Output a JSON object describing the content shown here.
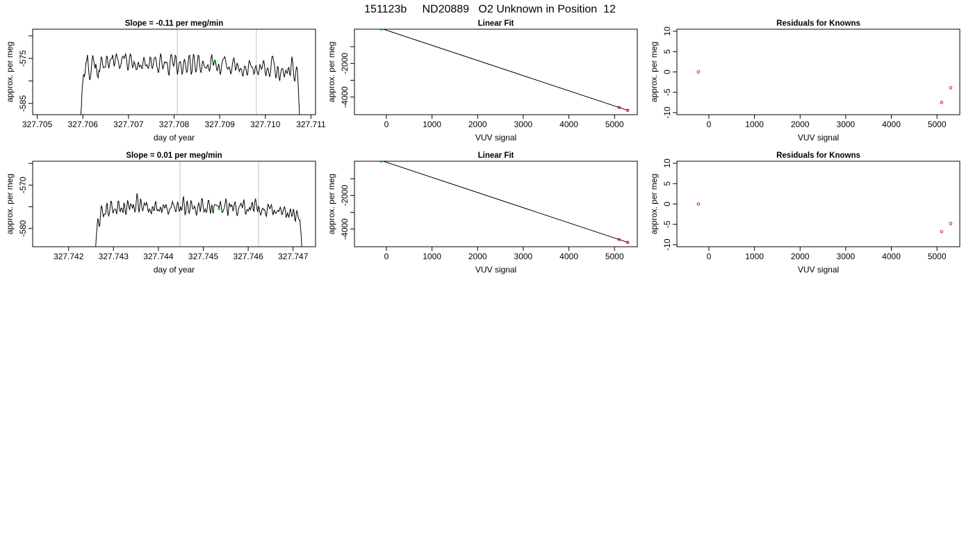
{
  "title": "151123b     ND20889   O2 Unknown in Position  12",
  "colors": {
    "trace": "#000000",
    "marker_green": "#00cc00",
    "marker_red": "#cc0000",
    "cursor_gray": "#cccccc"
  },
  "chart_data": [
    {
      "type": "line",
      "title": "Slope =  -0.11  per meg/min",
      "xlabel": "day of year",
      "ylabel": "approx. per meg",
      "xlim": [
        327.7049,
        327.7111
      ],
      "ylim": [
        -587.5,
        -568.5
      ],
      "xticks": [
        "327.705",
        "327.706",
        "327.707",
        "327.708",
        "327.709",
        "327.710",
        "327.711"
      ],
      "yticks": [
        -585,
        -580,
        -575,
        -570
      ],
      "ytick_labels": [
        "-585",
        "",
        "-575",
        ""
      ],
      "vlines": [
        327.70807,
        327.7098
      ],
      "x_start": 327.70595,
      "x_end": 327.71075,
      "values": [
        -588.0,
        -586.0,
        -582.0,
        -580.0,
        -578.5,
        -579.0,
        -578.2,
        -576.0,
        -575.5,
        -574.2,
        -576.3,
        -578.3,
        -579.8,
        -579.2,
        -577.6,
        -575.3,
        -574.3,
        -575.2,
        -576.4,
        -577.2,
        -576.2,
        -577.4,
        -578.9,
        -579.3,
        -577.7,
        -577.9,
        -576.4,
        -574.7,
        -574.9,
        -576.3,
        -577.1,
        -577.0,
        -577.0,
        -576.5,
        -574.5,
        -574.6,
        -576.3,
        -577.2,
        -576.2,
        -575.2,
        -575.1,
        -575.0,
        -574.2,
        -575.4,
        -576.8,
        -576.1,
        -574.5,
        -574.0,
        -574.8,
        -575.3,
        -576.1,
        -577.2,
        -577.0,
        -576.3,
        -575.2,
        -574.5,
        -574.5,
        -575.0,
        -574.6,
        -573.9,
        -574.9,
        -576.4,
        -577.7,
        -577.0,
        -575.1,
        -574.0,
        -574.3,
        -575.7,
        -577.0,
        -576.8,
        -575.7,
        -576.1,
        -576.8,
        -577.5,
        -577.4,
        -576.1,
        -575.9,
        -576.9,
        -576.6,
        -576.5,
        -577.2,
        -577.2,
        -575.6,
        -574.7,
        -575.4,
        -576.6,
        -576.6,
        -576.4,
        -577.1,
        -577.2,
        -576.3,
        -574.7,
        -574.8,
        -576.6,
        -577.3,
        -576.6,
        -575.4,
        -574.9,
        -574.7,
        -575.3,
        -576.7,
        -577.5,
        -578.2,
        -577.3,
        -575.1,
        -573.9,
        -574.9,
        -576.6,
        -577.4,
        -576.6,
        -575.8,
        -576.0,
        -575.8,
        -575.8,
        -576.5,
        -578.2,
        -578.8,
        -576.6,
        -574.4,
        -574.1,
        -574.9,
        -576.2,
        -576.8,
        -575.8,
        -574.3,
        -574.5,
        -577.1,
        -578.6,
        -577.5,
        -576.1,
        -575.8,
        -575.7,
        -577.1,
        -578.6,
        -577.8,
        -576.0,
        -575.2,
        -575.7,
        -577.0,
        -578.1,
        -577.8,
        -576.0,
        -574.4,
        -574.3,
        -576.6,
        -578.6,
        -578.0,
        -575.5,
        -574.0,
        -574.6,
        -576.9,
        -578.1,
        -577.6,
        -575.9,
        -574.3,
        -574.4,
        -576.2,
        -577.8,
        -578.1,
        -576.8,
        -575.6,
        -575.8,
        -576.7,
        -577.0,
        -577.1,
        -577.2,
        -576.6,
        -576.4,
        -577.3,
        -577.9,
        -577.0,
        -575.0,
        -574.1,
        -575.4,
        -576.6,
        -576.1,
        -575.3,
        -575.9,
        -577.0,
        -577.8,
        -577.1,
        -576.2,
        -577.2,
        -578.6,
        -578.0,
        -576.4,
        -575.5,
        -575.1,
        -575.0,
        -574.6,
        -575.4,
        -576.4,
        -577.2,
        -577.4,
        -577.0,
        -576.9,
        -577.8,
        -578.5,
        -577.7,
        -576.3,
        -575.3,
        -574.9,
        -576.0,
        -577.6,
        -577.3,
        -576.1,
        -576.3,
        -577.2,
        -577.9,
        -577.4,
        -577.2,
        -577.6,
        -578.7,
        -578.9,
        -577.7,
        -576.7,
        -576.8,
        -577.5,
        -578.7,
        -578.6,
        -576.7,
        -575.5,
        -575.8,
        -576.5,
        -576.9,
        -576.9,
        -577.4,
        -578.5,
        -578.2,
        -576.9,
        -576.6,
        -577.5,
        -578.3,
        -578.6,
        -577.7,
        -576.4,
        -576.7,
        -577.4,
        -577.0,
        -576.0,
        -575.4,
        -576.4,
        -578.3,
        -578.9,
        -577.7,
        -577.1,
        -577.4,
        -578.6,
        -579.1,
        -578.0,
        -575.8,
        -574.5,
        -574.6,
        -575.5,
        -576.3,
        -578.2,
        -579.4,
        -578.6,
        -576.8,
        -577.0,
        -579.2,
        -580.0,
        -578.6,
        -577.6,
        -577.2,
        -577.3,
        -578.4,
        -579.2,
        -578.3,
        -577.6,
        -578.1,
        -578.3,
        -577.2,
        -577.0,
        -578.5,
        -578.8,
        -576.5,
        -574.6,
        -575.7,
        -578.0,
        -579.8,
        -580.0,
        -578.0,
        -576.8,
        -577.3,
        -580.1,
        -584.0,
        -588.0
      ],
      "marker": {
        "x": 327.70888,
        "y": -575.9
      }
    },
    {
      "type": "scatter",
      "title": "Linear Fit",
      "xlabel": "VUV signal",
      "ylabel": "approx. per meg",
      "xlim": [
        -700,
        5500
      ],
      "ylim": [
        -5050,
        40
      ],
      "xticks": [
        0,
        1000,
        2000,
        3000,
        4000,
        5000
      ],
      "yticks": [
        -4000,
        -3000,
        -2000,
        -1000
      ],
      "ytick_labels": [
        "-4000",
        "",
        "-2000",
        ""
      ],
      "fit_line": {
        "x": [
          -500,
          5300
        ],
        "y": [
          430,
          -4800
        ]
      },
      "points_red": [
        {
          "x": -215,
          "y": 175
        },
        {
          "x": 5100,
          "y": -4623
        },
        {
          "x": 5290,
          "y": -4793
        }
      ],
      "points_green": [
        {
          "x": -110,
          "y": 40
        }
      ]
    },
    {
      "type": "scatter",
      "title": "Residuals for Knowns",
      "xlabel": "VUV signal",
      "ylabel": "approx. per meg",
      "xlim": [
        -700,
        5500
      ],
      "ylim": [
        -10.5,
        10.5
      ],
      "xticks": [
        0,
        1000,
        2000,
        3000,
        4000,
        5000
      ],
      "yticks": [
        -10,
        -5,
        0,
        5,
        10
      ],
      "ytick_labels": [
        "-10",
        "-5",
        "0",
        "5",
        "10"
      ],
      "points_red": [
        {
          "x": -230,
          "y": 0
        },
        {
          "x": 5100,
          "y": -7.5
        },
        {
          "x": 5300,
          "y": -3.9
        }
      ]
    },
    {
      "type": "line",
      "title": "Slope =  0.01  per meg/min",
      "xlabel": "day of year",
      "ylabel": "approx. per meg",
      "xlim": [
        327.7412,
        327.7475
      ],
      "ylim": [
        -584.2,
        -564.5
      ],
      "xticks": [
        "327.742",
        "327.743",
        "327.744",
        "327.745",
        "327.746",
        "327.747"
      ],
      "yticks": [
        -580,
        -575,
        -570,
        -565
      ],
      "ytick_labels": [
        "-580",
        "",
        "-570",
        ""
      ],
      "vlines": [
        327.74448,
        327.74623
      ],
      "x_start": 327.7426,
      "x_end": 327.7472,
      "values": [
        -585.0,
        -582.0,
        -580.0,
        -577.7,
        -578.2,
        -579.6,
        -579.1,
        -576.4,
        -574.7,
        -575.2,
        -576.6,
        -577.3,
        -576.7,
        -576.7,
        -576.7,
        -574.7,
        -574.1,
        -576.3,
        -577.1,
        -576.7,
        -575.2,
        -573.7,
        -573.8,
        -575.4,
        -576.5,
        -575.9,
        -575.6,
        -575.5,
        -575.7,
        -576.7,
        -575.5,
        -573.7,
        -573.8,
        -575.7,
        -576.1,
        -575.3,
        -575.3,
        -576.0,
        -576.3,
        -574.1,
        -574.5,
        -576.3,
        -576.8,
        -575.3,
        -573.5,
        -574.0,
        -575.2,
        -575.6,
        -574.4,
        -574.4,
        -574.9,
        -575.3,
        -574.4,
        -575.1,
        -576.2,
        -575.8,
        -573.8,
        -571.9,
        -572.8,
        -575.4,
        -576.3,
        -574.5,
        -573.1,
        -573.9,
        -575.5,
        -575.9,
        -575.2,
        -574.1,
        -574.4,
        -574.7,
        -574.0,
        -574.4,
        -575.7,
        -576.3,
        -575.5,
        -575.7,
        -576.3,
        -576.6,
        -575.0,
        -575.0,
        -575.9,
        -575.8,
        -574.1,
        -573.7,
        -575.5,
        -575.9,
        -575.6,
        -575.9,
        -576.0,
        -575.1,
        -575.3,
        -576.4,
        -575.6,
        -574.6,
        -574.6,
        -575.3,
        -575.1,
        -574.4,
        -575.2,
        -575.9,
        -576.7,
        -576.3,
        -575.5,
        -575.3,
        -575.2,
        -574.3,
        -573.8,
        -574.5,
        -574.8,
        -575.3,
        -576.1,
        -576.0,
        -574.6,
        -573.8,
        -574.8,
        -576.0,
        -575.7,
        -574.9,
        -575.8,
        -575.7,
        -573.4,
        -572.6,
        -574.5,
        -576.8,
        -576.5,
        -574.6,
        -573.6,
        -574.5,
        -576.2,
        -576.5,
        -575.4,
        -573.6,
        -573.8,
        -575.0,
        -575.5,
        -575.4,
        -574.8,
        -575.3,
        -576.4,
        -577.0,
        -575.7,
        -574.6,
        -574.1,
        -574.9,
        -576.2,
        -575.0,
        -573.1,
        -573.2,
        -575.0,
        -576.2,
        -575.8,
        -575.5,
        -576.3,
        -576.1,
        -574.6,
        -573.5,
        -573.6,
        -575.2,
        -576.6,
        -575.3,
        -574.5,
        -576.1,
        -576.5,
        -574.7,
        -574.5,
        -574.6,
        -574.6,
        -574.7,
        -574.8,
        -574.9,
        -575.3,
        -574.2,
        -573.8,
        -575.2,
        -576.3,
        -576.2,
        -575.7,
        -575.3,
        -574.5,
        -573.2,
        -573.5,
        -575.8,
        -577.1,
        -575.5,
        -574.1,
        -574.8,
        -575.0,
        -574.5,
        -574.8,
        -576.0,
        -575.5,
        -574.2,
        -573.9,
        -574.9,
        -576.7,
        -577.0,
        -576.2,
        -575.2,
        -574.9,
        -574.6,
        -574.2,
        -574.7,
        -575.3,
        -574.2,
        -573.3,
        -574.6,
        -576.6,
        -576.7,
        -575.8,
        -575.6,
        -576.0,
        -575.6,
        -575.1,
        -575.7,
        -575.2,
        -574.0,
        -574.1,
        -575.9,
        -576.0,
        -573.9,
        -573.1,
        -574.1,
        -575.5,
        -576.2,
        -574.9,
        -575.1,
        -576.3,
        -576.9,
        -576.5,
        -575.5,
        -575.3,
        -575.7,
        -575.6,
        -575.8,
        -576.8,
        -577.2,
        -575.8,
        -574.4,
        -574.6,
        -575.3,
        -575.4,
        -574.8,
        -574.5,
        -575.8,
        -576.9,
        -576.1,
        -575.8,
        -576.5,
        -576.5,
        -576.2,
        -576.0,
        -575.8,
        -576.1,
        -575.7,
        -575.1,
        -575.6,
        -576.8,
        -576.7,
        -575.9,
        -575.3,
        -575.0,
        -575.9,
        -577.4,
        -577.1,
        -576.4,
        -577.0,
        -577.4,
        -576.2,
        -575.4,
        -576.4,
        -577.2,
        -576.9,
        -575.5,
        -576.1,
        -578.0,
        -578.3,
        -576.5,
        -575.8,
        -576.7,
        -577.7,
        -578.0,
        -578.0,
        -580.0,
        -582.0,
        -586.0
      ],
      "marker": {
        "x": 327.74535,
        "y": -575.5
      }
    },
    {
      "type": "scatter",
      "title": "Linear Fit",
      "xlabel": "VUV signal",
      "ylabel": "approx. per meg",
      "xlim": [
        -700,
        5500
      ],
      "ylim": [
        -5050,
        40
      ],
      "xticks": [
        0,
        1000,
        2000,
        3000,
        4000,
        5000
      ],
      "yticks": [
        -4000,
        -3000,
        -2000,
        -1000
      ],
      "ytick_labels": [
        "-4000",
        "",
        "-2000",
        ""
      ],
      "fit_line": {
        "x": [
          -500,
          5300
        ],
        "y": [
          430,
          -4800
        ]
      },
      "points_red": [
        {
          "x": -215,
          "y": 175
        },
        {
          "x": 5100,
          "y": -4623
        },
        {
          "x": 5290,
          "y": -4793
        }
      ],
      "points_green": [
        {
          "x": -110,
          "y": 40
        }
      ]
    },
    {
      "type": "scatter",
      "title": "Residuals for Knowns",
      "xlabel": "VUV signal",
      "ylabel": "approx. per meg",
      "xlim": [
        -700,
        5500
      ],
      "ylim": [
        -10.5,
        10.5
      ],
      "xticks": [
        0,
        1000,
        2000,
        3000,
        4000,
        5000
      ],
      "yticks": [
        -10,
        -5,
        0,
        5,
        10
      ],
      "ytick_labels": [
        "-10",
        "-5",
        "0",
        "5",
        "10"
      ],
      "points_red": [
        {
          "x": -230,
          "y": 0
        },
        {
          "x": 5100,
          "y": -6.8
        },
        {
          "x": 5300,
          "y": -4.8
        }
      ]
    }
  ]
}
